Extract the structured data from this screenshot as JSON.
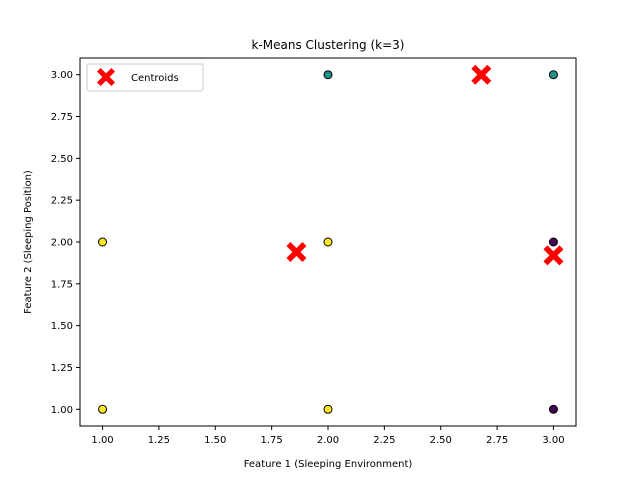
{
  "chart_data": {
    "type": "scatter",
    "title": "k-Means Clustering (k=3)",
    "xlabel": "Feature 1 (Sleeping Environment)",
    "ylabel": "Feature 2 (Sleeping Position)",
    "xlim": [
      0.9,
      3.1
    ],
    "ylim": [
      0.9,
      3.1
    ],
    "xticks": [
      "1.00",
      "1.25",
      "1.50",
      "1.75",
      "2.00",
      "2.25",
      "2.50",
      "2.75",
      "3.00"
    ],
    "xtick_values": [
      1.0,
      1.25,
      1.5,
      1.75,
      2.0,
      2.25,
      2.5,
      2.75,
      3.0
    ],
    "yticks": [
      "1.00",
      "1.25",
      "1.50",
      "1.75",
      "2.00",
      "2.25",
      "2.50",
      "2.75",
      "3.00"
    ],
    "ytick_values": [
      1.0,
      1.25,
      1.5,
      1.75,
      2.0,
      2.25,
      2.5,
      2.75,
      3.0
    ],
    "grid": false,
    "legend_position": "top-left",
    "series": [
      {
        "color": "#440154",
        "points": [
          [
            3.0,
            2.0
          ],
          [
            3.0,
            1.0
          ]
        ]
      },
      {
        "color": "#21918c",
        "points": [
          [
            2.0,
            3.0
          ],
          [
            3.0,
            3.0
          ]
        ]
      },
      {
        "color": "#fde725",
        "points": [
          [
            1.0,
            2.0
          ],
          [
            1.0,
            1.0
          ],
          [
            2.0,
            2.0
          ],
          [
            2.0,
            1.0
          ]
        ]
      }
    ],
    "centroids": {
      "name": "Centroids",
      "color": "#ff0000",
      "marker": "X",
      "points": [
        [
          1.86,
          1.94
        ],
        [
          2.68,
          3.0
        ],
        [
          3.0,
          1.92
        ]
      ]
    }
  }
}
